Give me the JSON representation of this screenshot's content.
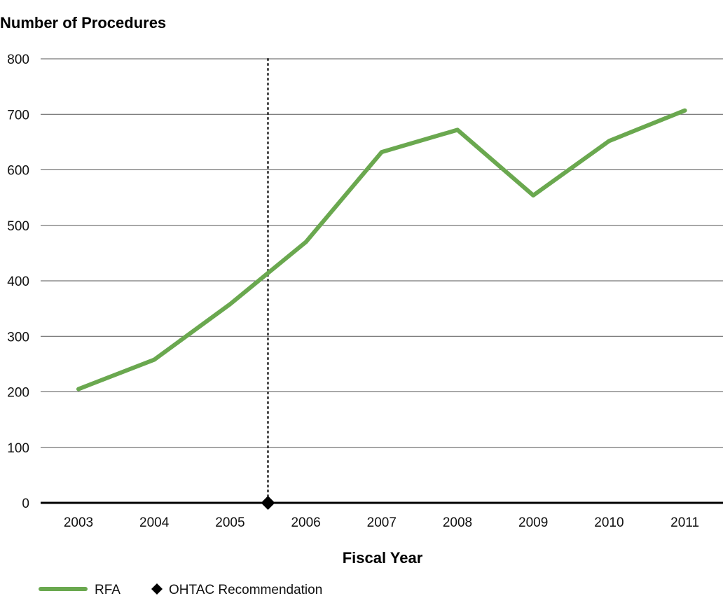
{
  "chart_data": {
    "type": "line",
    "ylabel": "Number of Procedures",
    "xlabel": "Fiscal Year",
    "categories": [
      "2003",
      "2004",
      "2005",
      "2006",
      "2007",
      "2008",
      "2009",
      "2010",
      "2011"
    ],
    "series": [
      {
        "name": "RFA",
        "color": "#6aa84f",
        "values": [
          205,
          258,
          358,
          470,
          632,
          672,
          554,
          652,
          707
        ]
      }
    ],
    "yticks": [
      "0",
      "100",
      "200",
      "300",
      "400",
      "500",
      "600",
      "700",
      "800"
    ],
    "ylim": [
      0,
      800
    ],
    "grid": true,
    "marker": {
      "name": "OHTAC Recommendation",
      "x_position_between": [
        "2005",
        "2006"
      ],
      "style": "dotted vertical line with diamond"
    },
    "legend_placement": "bottom-left"
  }
}
